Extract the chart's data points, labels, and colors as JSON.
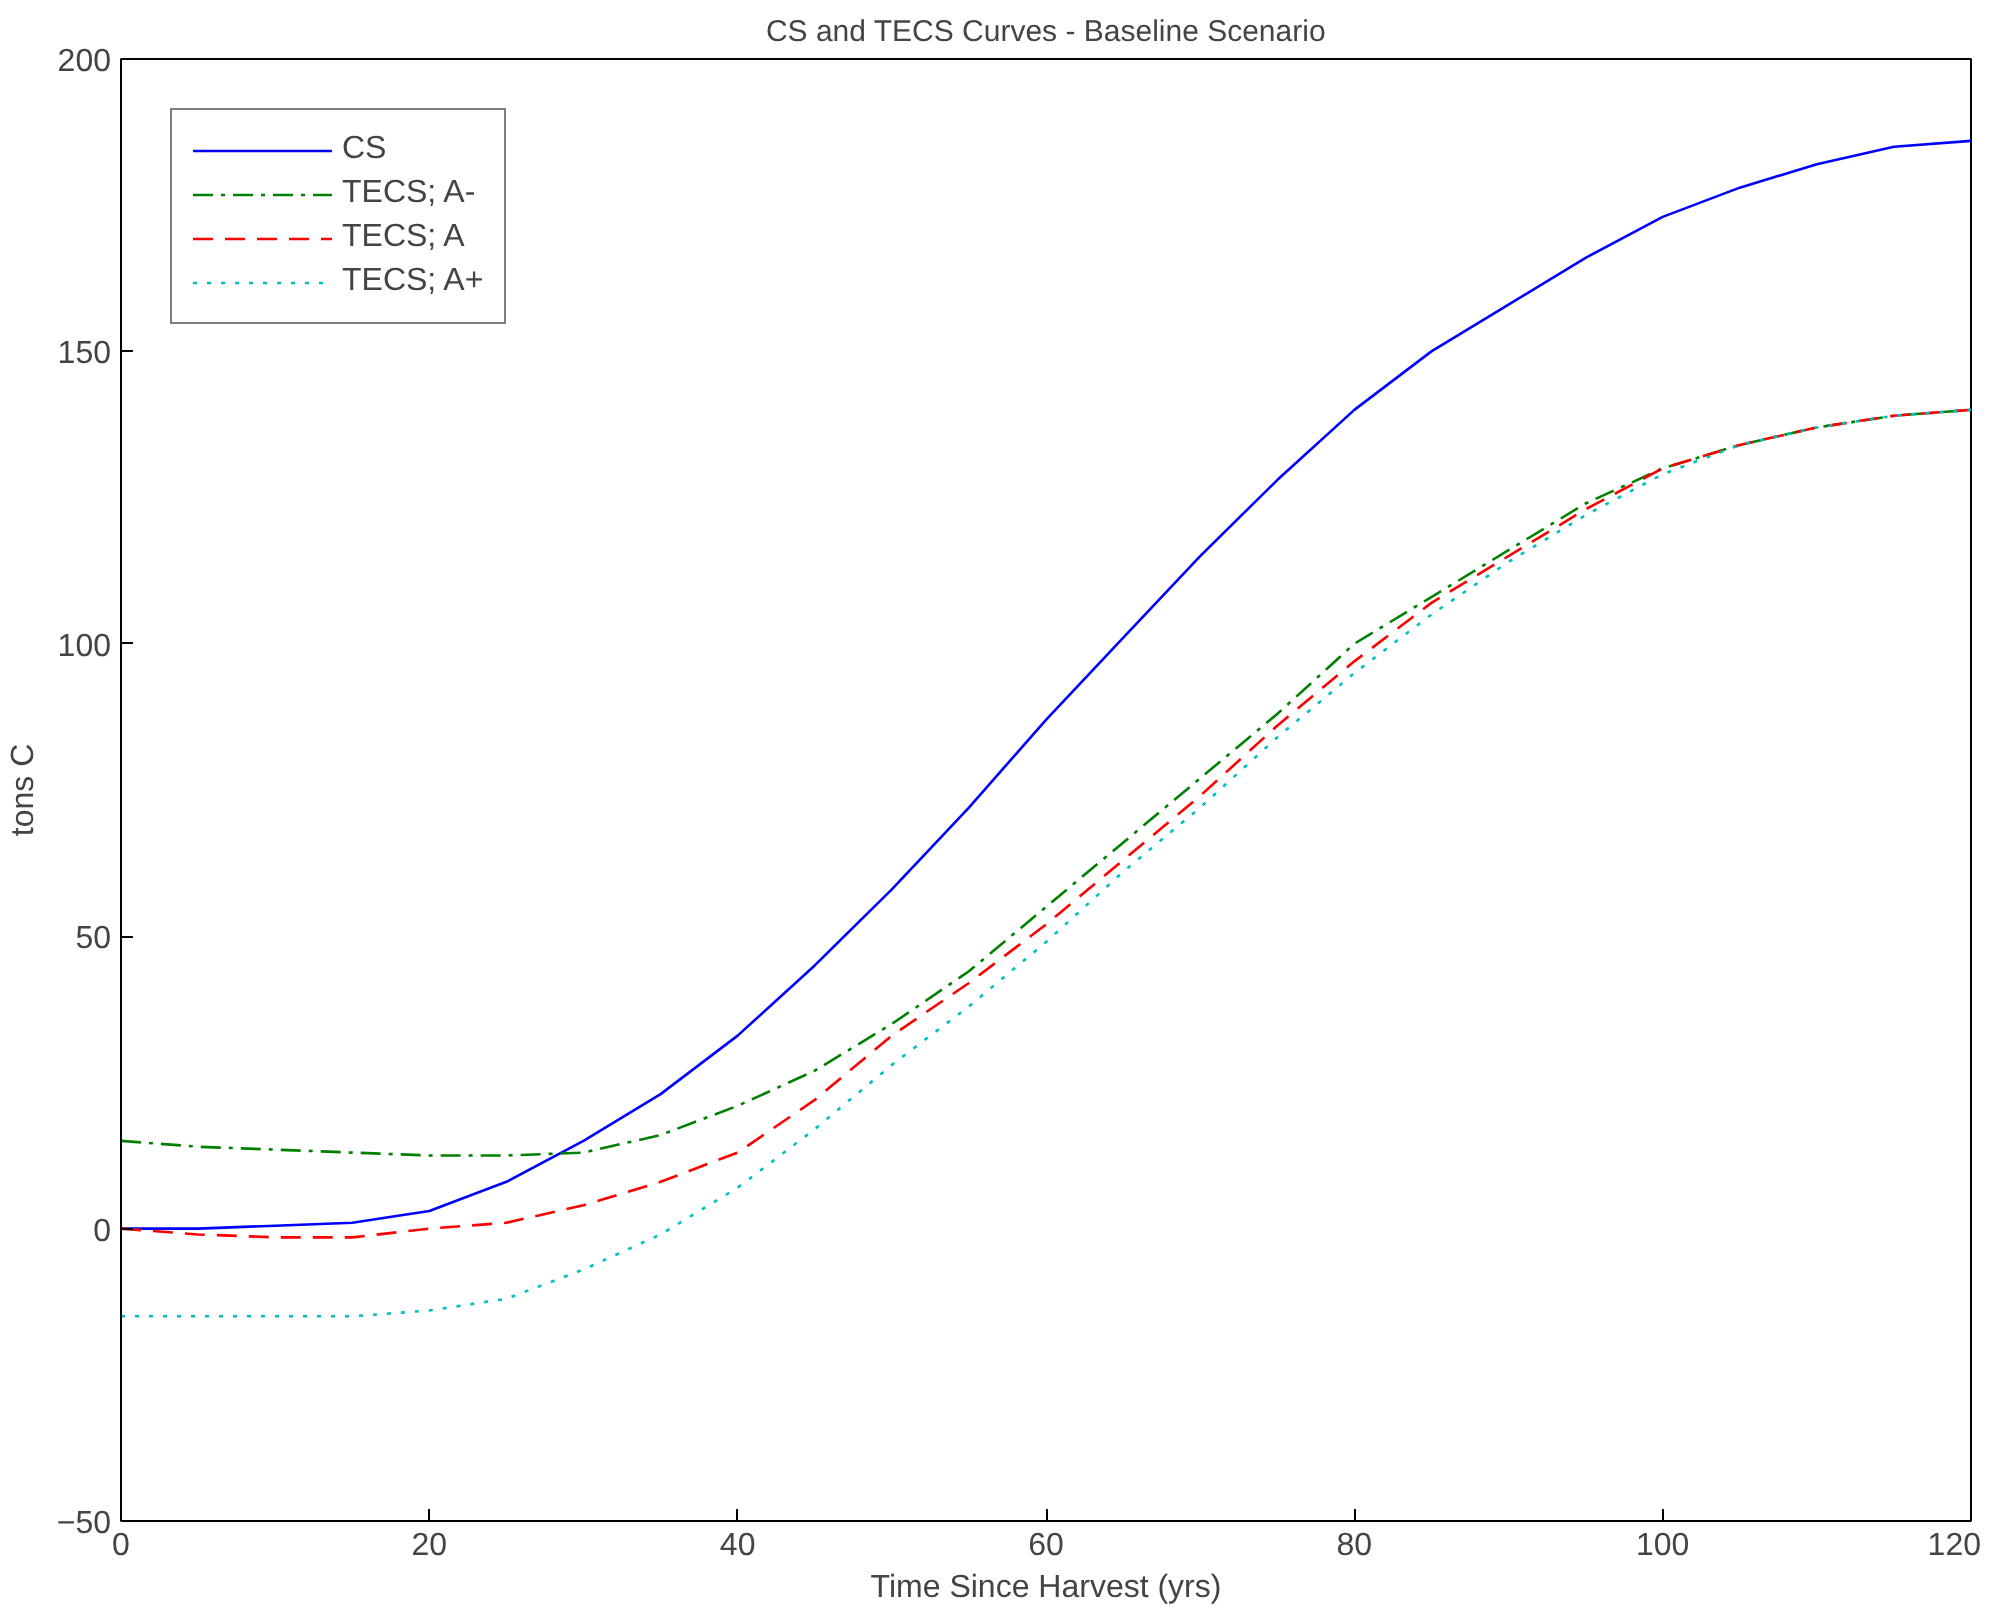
{
  "chart_data": {
    "type": "line",
    "title": "CS and TECS Curves - Baseline Scenario",
    "xlabel": "Time Since Harvest (yrs)",
    "ylabel": "tons C",
    "xlim": [
      0,
      120
    ],
    "ylim": [
      -50,
      200
    ],
    "xticks": [
      0,
      20,
      40,
      60,
      80,
      100,
      120
    ],
    "yticks": [
      -50,
      0,
      50,
      100,
      150,
      200
    ],
    "legend": "top left",
    "grid": false,
    "series": [
      {
        "name": "CS",
        "color": "#0000ff",
        "line_style": "solid",
        "x": [
          0,
          5,
          10,
          15,
          20,
          25,
          30,
          35,
          40,
          45,
          50,
          55,
          60,
          65,
          70,
          75,
          80,
          85,
          90,
          95,
          100,
          105,
          110,
          115,
          120
        ],
        "values": [
          0,
          0,
          0.5,
          1,
          3,
          8,
          15,
          23,
          33,
          45,
          58,
          72,
          87,
          101,
          115,
          128,
          140,
          150,
          158,
          166,
          173,
          178,
          182,
          185,
          186
        ]
      },
      {
        "name": "TECS; A-",
        "color": "#008000",
        "line_style": "dashdot",
        "x": [
          0,
          5,
          10,
          15,
          20,
          25,
          30,
          35,
          40,
          45,
          50,
          55,
          60,
          65,
          70,
          75,
          80,
          85,
          90,
          95,
          100,
          105,
          110,
          115,
          120
        ],
        "values": [
          15,
          14,
          13.5,
          13,
          12.5,
          12.5,
          13,
          16,
          21,
          27,
          35,
          44,
          55,
          66,
          77,
          88,
          100,
          108,
          116,
          124,
          130,
          134,
          137,
          139,
          140
        ]
      },
      {
        "name": "TECS; A",
        "color": "#ff0000",
        "line_style": "dashed",
        "x": [
          0,
          5,
          10,
          15,
          20,
          25,
          30,
          35,
          40,
          45,
          50,
          55,
          60,
          65,
          70,
          75,
          80,
          85,
          90,
          95,
          100,
          105,
          110,
          115,
          120
        ],
        "values": [
          0,
          -1,
          -1.5,
          -1.5,
          0,
          1,
          4,
          8,
          13,
          22,
          33,
          42,
          52,
          63,
          74,
          86,
          97,
          107,
          115,
          123,
          130,
          134,
          137,
          139,
          140
        ]
      },
      {
        "name": "TECS; A+",
        "color": "#00bfbf",
        "line_style": "dotted",
        "x": [
          0,
          5,
          10,
          15,
          20,
          25,
          30,
          35,
          40,
          45,
          50,
          55,
          60,
          65,
          70,
          75,
          80,
          85,
          90,
          95,
          100,
          105,
          110,
          115,
          120
        ],
        "values": [
          -15,
          -15,
          -15,
          -15,
          -14,
          -12,
          -7,
          -1,
          7,
          17,
          28,
          38,
          49,
          61,
          72,
          84,
          95,
          105,
          114,
          122,
          129,
          134,
          137,
          139,
          140
        ]
      }
    ]
  }
}
